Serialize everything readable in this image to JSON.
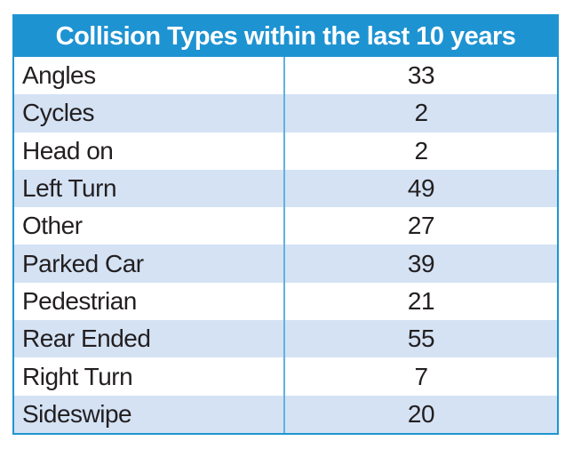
{
  "table": {
    "title": "Collision Types within the last 10 years",
    "rows": [
      {
        "label": "Angles",
        "value": "33"
      },
      {
        "label": "Cycles",
        "value": "2"
      },
      {
        "label": "Head on",
        "value": "2"
      },
      {
        "label": "Left Turn",
        "value": "49"
      },
      {
        "label": "Other",
        "value": "27"
      },
      {
        "label": "Parked Car",
        "value": "39"
      },
      {
        "label": "Pedestrian",
        "value": "21"
      },
      {
        "label": "Rear Ended",
        "value": "55"
      },
      {
        "label": "Right Turn",
        "value": "7"
      },
      {
        "label": "Sideswipe",
        "value": "20"
      }
    ],
    "colors": {
      "header_bg": "#1e93d2",
      "header_text": "#ffffff",
      "row_bg": "#ffffff",
      "row_alt_bg": "#d4e2f4",
      "outer_border": "#2095d3",
      "column_divider": "#62b1e0",
      "body_text": "#231f20"
    }
  },
  "chart_data": {
    "type": "table",
    "title": "Collision Types within the last 10 years",
    "categories": [
      "Angles",
      "Cycles",
      "Head on",
      "Left Turn",
      "Other",
      "Parked Car",
      "Pedestrian",
      "Rear Ended",
      "Right Turn",
      "Sideswipe"
    ],
    "values": [
      33,
      2,
      2,
      49,
      27,
      39,
      21,
      55,
      7,
      20
    ],
    "legend_position": "none",
    "grid": false
  }
}
